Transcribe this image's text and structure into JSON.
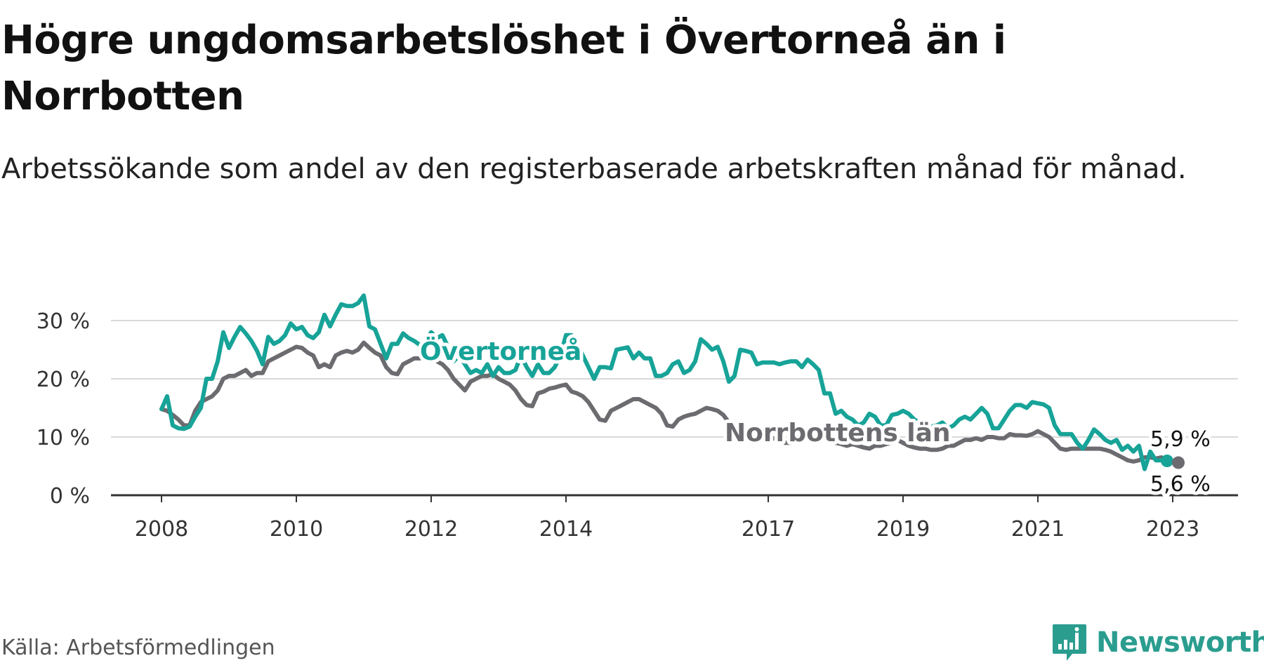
{
  "header": {
    "title": "Högre ungdomsarbetslöshet i Övertorneå än i Norrbotten",
    "subtitle": "Arbetssökande som andel av den registerbaserade arbetskraften månad för månad."
  },
  "footer": {
    "source": "Källa: Arbetsförmedlingen",
    "brand": "Newsworthy"
  },
  "colors": {
    "overtornea": "#17a398",
    "norrbotten": "#6b6b70",
    "grid": "#d9d9d9",
    "axis": "#333333",
    "brand": "#2a9d8f"
  },
  "chart_data": {
    "type": "line",
    "title": "Högre ungdomsarbetslöshet i Övertorneå än i Norrbotten",
    "xlabel": "",
    "ylabel": "",
    "xlim": [
      2007.5,
      2024.0
    ],
    "ylim": [
      0,
      30
    ],
    "x_ticks": [
      2008,
      2010,
      2012,
      2014,
      2017,
      2019,
      2021,
      2023
    ],
    "x_tick_labels": [
      "2008",
      "2010",
      "2012",
      "2014",
      "2017",
      "2019",
      "2021",
      "2023"
    ],
    "y_ticks": [
      0,
      10,
      20,
      30
    ],
    "y_tick_labels": [
      "0 %",
      "10 %",
      "20 %",
      "30 %"
    ],
    "grid": true,
    "x_start": 2008.0,
    "x_step": 0.0833333,
    "series": [
      {
        "name": "Övertorneå",
        "label": "Övertorneå",
        "end_label": "5,9 %",
        "values": [
          14.8,
          17.0,
          12.0,
          11.5,
          11.4,
          11.8,
          13.5,
          15.0,
          20.0,
          20.0,
          23.0,
          28.0,
          25.3,
          27.2,
          28.9,
          27.8,
          26.5,
          24.8,
          22.5,
          27.2,
          26.0,
          26.5,
          27.5,
          29.5,
          28.5,
          28.9,
          27.5,
          27.0,
          28.0,
          31.0,
          29.0,
          31.0,
          32.8,
          32.5,
          32.5,
          33.0,
          34.3,
          29.0,
          28.5,
          26.0,
          23.5,
          26.0,
          26.0,
          27.8,
          27.0,
          26.5,
          25.8,
          26.5,
          28.0,
          27.0,
          27.5,
          25.5,
          23.0,
          24.0,
          22.5,
          21.0,
          21.5,
          21.0,
          22.5,
          20.5,
          22.0,
          21.0,
          21.0,
          21.5,
          24.0,
          22.0,
          20.5,
          22.5,
          21.0,
          21.0,
          22.0,
          24.0,
          27.5,
          27.5,
          26.0,
          24.0,
          22.0,
          20.0,
          22.0,
          22.0,
          21.8,
          25.0,
          25.2,
          25.4,
          23.5,
          24.5,
          23.5,
          23.5,
          20.5,
          20.5,
          21.0,
          22.5,
          23.0,
          21.0,
          21.5,
          23.0,
          26.8,
          26.0,
          25.0,
          25.5,
          23.0,
          19.5,
          20.5,
          25.0,
          24.8,
          24.5,
          22.5,
          22.8,
          22.8,
          22.8,
          22.5,
          22.8,
          23.0,
          23.0,
          22.0,
          23.3,
          22.5,
          21.5,
          17.5,
          17.5,
          14.0,
          14.5,
          13.5,
          13.0,
          12.0,
          12.5,
          14.0,
          13.5,
          12.0,
          12.0,
          13.8,
          14.0,
          14.5,
          14.0,
          13.0,
          12.5,
          12.0,
          11.8,
          12.0,
          12.5,
          11.5,
          12.0,
          13.0,
          13.5,
          13.0,
          14.0,
          15.0,
          14.0,
          11.5,
          11.5,
          13.0,
          14.5,
          15.5,
          15.5,
          15.0,
          16.0,
          15.8,
          15.6,
          15.0,
          12.0,
          10.5,
          10.5,
          10.5,
          9.0,
          8.0,
          9.5,
          11.3,
          10.5,
          9.5,
          9.0,
          9.5,
          7.8,
          8.5,
          7.5,
          8.5,
          4.5,
          7.5,
          6.0,
          6.0,
          5.9
        ]
      },
      {
        "name": "Norrbottens län",
        "label": "Norrbottens län",
        "end_label": "5,6 %",
        "values": [
          14.8,
          14.5,
          13.8,
          13.0,
          12.0,
          12.0,
          14.5,
          16.0,
          16.5,
          17.0,
          18.0,
          20.0,
          20.5,
          20.5,
          21.0,
          21.5,
          20.5,
          21.0,
          21.0,
          23.0,
          23.5,
          24.0,
          24.5,
          25.0,
          25.5,
          25.3,
          24.5,
          24.0,
          22.0,
          22.5,
          22.0,
          24.0,
          24.5,
          24.8,
          24.5,
          25.0,
          26.2,
          25.3,
          24.5,
          24.0,
          22.0,
          21.0,
          20.8,
          22.5,
          23.0,
          23.5,
          23.5,
          23.8,
          23.5,
          23.0,
          22.5,
          21.5,
          20.0,
          19.0,
          18.0,
          19.5,
          20.0,
          20.5,
          20.5,
          20.8,
          20.0,
          19.5,
          19.0,
          18.0,
          16.5,
          15.5,
          15.3,
          17.5,
          17.8,
          18.3,
          18.5,
          18.8,
          19.0,
          17.8,
          17.5,
          17.0,
          16.0,
          14.5,
          13.0,
          12.8,
          14.5,
          15.0,
          15.5,
          16.0,
          16.5,
          16.5,
          16.0,
          15.5,
          15.0,
          14.0,
          12.0,
          11.8,
          13.0,
          13.5,
          13.8,
          14.0,
          14.5,
          15.0,
          14.8,
          14.5,
          13.8,
          12.5,
          11.5,
          10.5,
          10.5,
          11.0,
          10.5,
          10.0,
          9.5,
          9.8,
          9.5,
          9.0,
          9.0,
          9.5,
          10.0,
          10.0,
          10.0,
          10.0,
          9.8,
          9.2,
          9.0,
          8.8,
          8.5,
          8.8,
          8.5,
          8.2,
          8.0,
          8.5,
          8.5,
          8.8,
          9.0,
          9.5,
          9.0,
          8.5,
          8.2,
          8.0,
          8.0,
          7.8,
          7.8,
          8.0,
          8.5,
          8.5,
          9.0,
          9.5,
          9.5,
          9.8,
          9.5,
          10.0,
          10.0,
          9.8,
          9.8,
          10.5,
          10.3,
          10.3,
          10.2,
          10.5,
          11.0,
          10.5,
          10.0,
          9.0,
          8.0,
          7.8,
          8.0,
          8.0,
          8.0,
          8.0,
          8.0,
          8.0,
          7.8,
          7.5,
          7.0,
          6.5,
          6.0,
          5.8,
          6.0,
          6.5,
          6.5,
          6.3,
          6.5,
          6.0,
          5.8,
          5.6
        ]
      }
    ]
  }
}
